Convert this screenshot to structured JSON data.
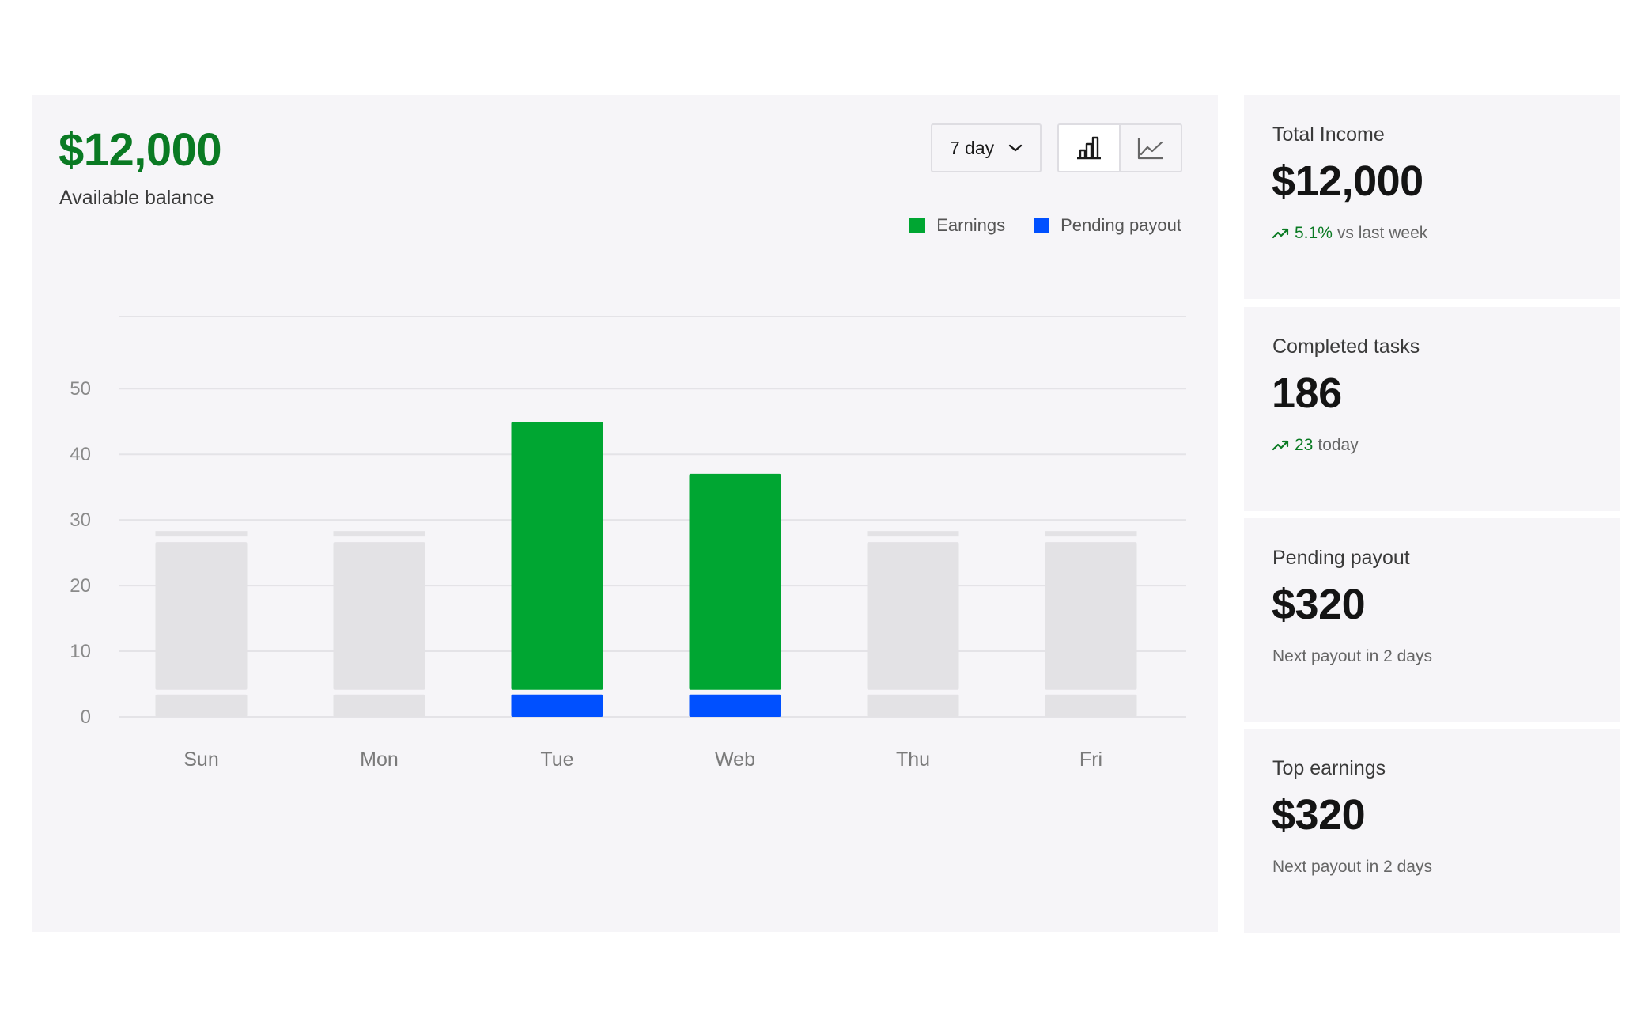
{
  "balance": {
    "amount": "$12,000",
    "label": "Available balance"
  },
  "controls": {
    "range_label": "7 day",
    "views": [
      "bar-chart",
      "line-chart"
    ],
    "active_view": "bar-chart"
  },
  "colors": {
    "earnings": "#00a632",
    "pending": "#0050ff",
    "inactive": "#e3e2e5",
    "accent_green": "#0a7a23"
  },
  "chart_data": {
    "type": "bar",
    "stacked": true,
    "categories": [
      "Sun",
      "Mon",
      "Tue",
      "Web",
      "Thu",
      "Fri"
    ],
    "highlighted": [
      "Tue",
      "Web"
    ],
    "series": [
      {
        "name": "Earnings",
        "values": [
          22.5,
          22.5,
          40.8,
          32.9,
          22.5,
          22.5
        ]
      },
      {
        "name": "Pending payout",
        "values": [
          3.4,
          3.4,
          3.4,
          3.4,
          3.4,
          3.4
        ]
      }
    ],
    "yticks": [
      0,
      10,
      20,
      30,
      40,
      50
    ],
    "ylim": [
      0,
      61
    ],
    "grid": true,
    "legend_position": "top-right"
  },
  "cards": [
    {
      "title": "Total Income",
      "value": "$12,000",
      "trend": "5.1%",
      "sub": "vs last week"
    },
    {
      "title": "Completed tasks",
      "value": "186",
      "trend": "23",
      "sub": "today"
    },
    {
      "title": "Pending payout",
      "value": "$320",
      "trend": "",
      "sub": "Next payout in 2 days"
    },
    {
      "title": "Top earnings",
      "value": "$320",
      "trend": "",
      "sub": "Next payout in 2 days"
    }
  ]
}
